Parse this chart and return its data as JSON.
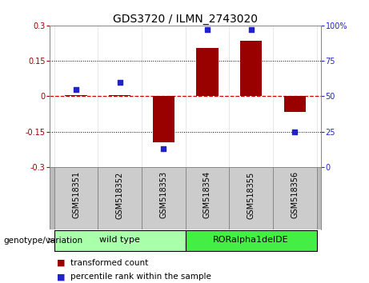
{
  "title": "GDS3720 / ILMN_2743020",
  "samples": [
    "GSM518351",
    "GSM518352",
    "GSM518353",
    "GSM518354",
    "GSM518355",
    "GSM518356"
  ],
  "transformed_count": [
    0.005,
    0.003,
    -0.195,
    0.205,
    0.235,
    -0.065
  ],
  "percentile_rank": [
    55,
    60,
    13,
    97,
    97,
    25
  ],
  "bar_color": "#990000",
  "dot_color": "#2222cc",
  "dashed_line_color": "#cc0000",
  "ylim_left": [
    -0.3,
    0.3
  ],
  "ylim_right": [
    0,
    100
  ],
  "yticks_left": [
    -0.3,
    -0.15,
    0,
    0.15,
    0.3
  ],
  "yticks_right": [
    0,
    25,
    50,
    75,
    100
  ],
  "groups": [
    {
      "label": "wild type",
      "indices": [
        0,
        1,
        2
      ],
      "color": "#aaffaa"
    },
    {
      "label": "RORalpha1delDE",
      "indices": [
        3,
        4,
        5
      ],
      "color": "#44ee44"
    }
  ],
  "genotype_label": "genotype/variation",
  "legend_items": [
    {
      "label": "transformed count",
      "color": "#990000"
    },
    {
      "label": "percentile rank within the sample",
      "color": "#2222cc"
    }
  ],
  "sample_bg_color": "#cccccc",
  "plot_bg": "#ffffff",
  "title_fontsize": 10,
  "tick_fontsize": 7,
  "sample_fontsize": 7,
  "legend_fontsize": 7.5,
  "geno_fontsize": 8
}
